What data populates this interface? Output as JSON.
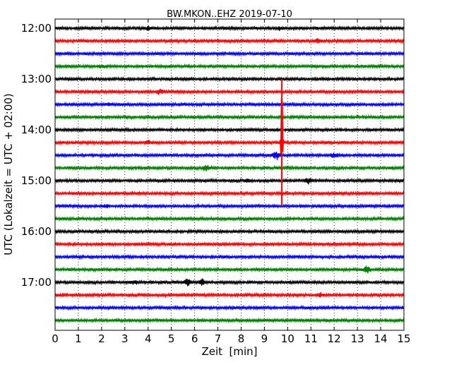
{
  "chart_data": {
    "type": "line",
    "title": "BW.MKON..EHZ 2019-07-10",
    "xlabel": "Zeit  [min]",
    "ylabel": "UTC (Lokalzeit = UTC + 02:00)",
    "xlim": [
      0,
      15
    ],
    "x_ticks": [
      "0",
      "1",
      "2",
      "3",
      "4",
      "5",
      "6",
      "7",
      "8",
      "9",
      "10",
      "11",
      "12",
      "13",
      "14",
      "15"
    ],
    "y_ticks": [
      "12:00",
      "13:00",
      "14:00",
      "15:00",
      "16:00",
      "17:00"
    ],
    "grid": true,
    "trace_interval_minutes": 15,
    "trace_start": "12:00",
    "trace_count": 24,
    "trace_colors": [
      "#000000",
      "#ff0000",
      "#0000ff",
      "#008000"
    ],
    "events": [
      {
        "trace": 0,
        "minute": 4.0,
        "amplitude": 0.2
      },
      {
        "trace": 0,
        "minute": 9.7,
        "amplitude": 0.25
      },
      {
        "trace": 1,
        "minute": 11.3,
        "amplitude": 0.2
      },
      {
        "trace": 3,
        "minute": 2.0,
        "amplitude": 0.15
      },
      {
        "trace": 5,
        "minute": 4.5,
        "amplitude": 0.3
      },
      {
        "trace": 6,
        "minute": 2.3,
        "amplitude": 0.15
      },
      {
        "trace": 9,
        "minute": 9.75,
        "amplitude": 9.0
      },
      {
        "trace": 9,
        "minute": 4.0,
        "amplitude": 0.2
      },
      {
        "trace": 10,
        "minute": 9.5,
        "amplitude": 0.6
      },
      {
        "trace": 10,
        "minute": 12.0,
        "amplitude": 0.3
      },
      {
        "trace": 11,
        "minute": 6.5,
        "amplitude": 0.5
      },
      {
        "trace": 12,
        "minute": 10.9,
        "amplitude": 0.35
      },
      {
        "trace": 12,
        "minute": 8.3,
        "amplitude": 0.2
      },
      {
        "trace": 14,
        "minute": 2.2,
        "amplitude": 0.2
      },
      {
        "trace": 19,
        "minute": 13.4,
        "amplitude": 0.5
      },
      {
        "trace": 20,
        "minute": 5.7,
        "amplitude": 0.4
      },
      {
        "trace": 20,
        "minute": 6.3,
        "amplitude": 0.4
      },
      {
        "trace": 20,
        "minute": 3.4,
        "amplitude": 0.25
      },
      {
        "trace": 21,
        "minute": 11.4,
        "amplitude": 0.25
      }
    ]
  }
}
